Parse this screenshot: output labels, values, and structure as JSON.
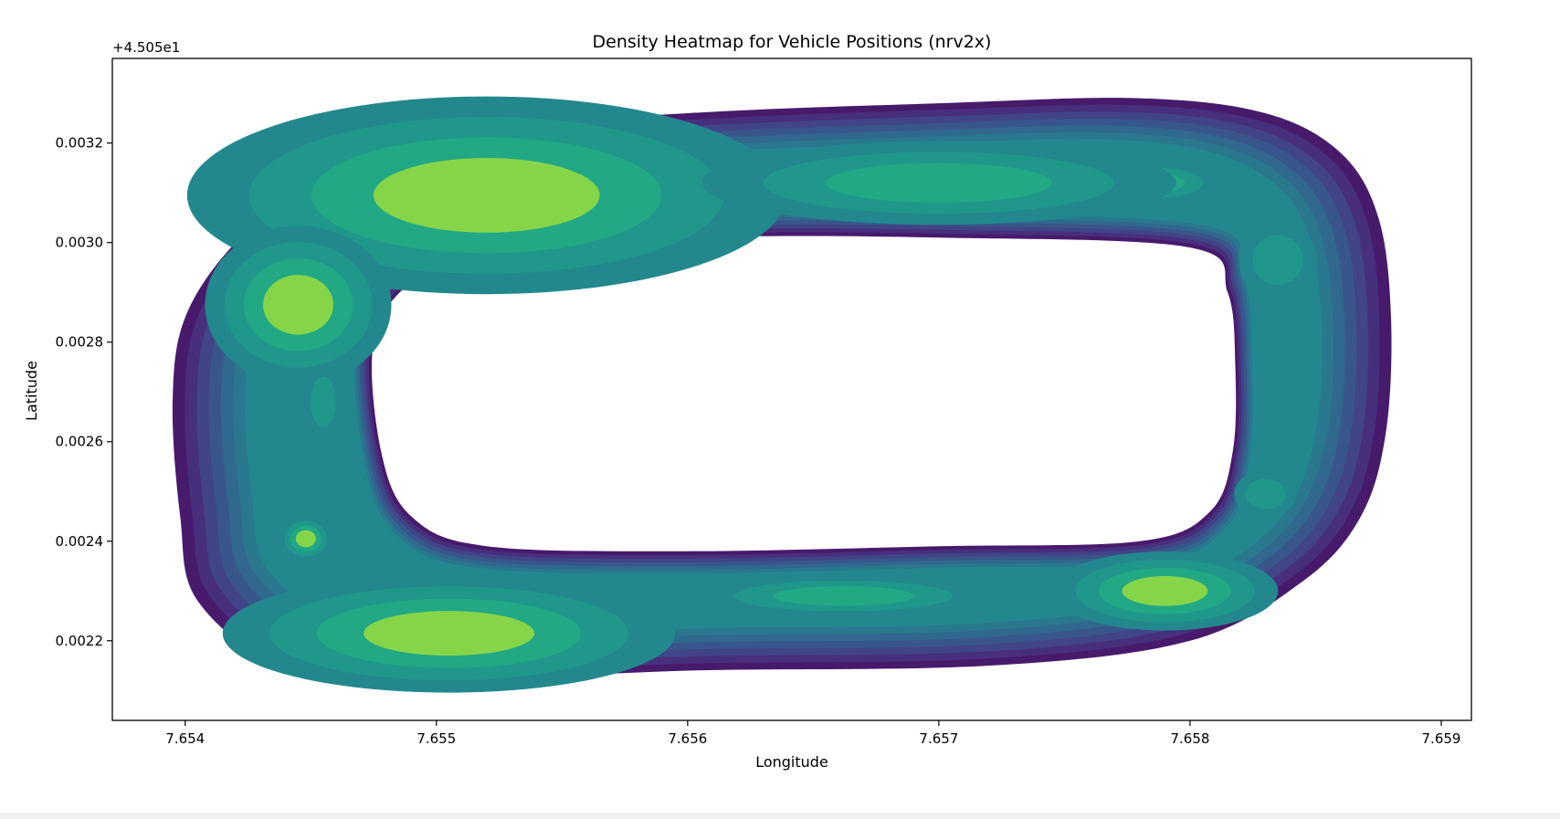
{
  "chart_data": {
    "type": "heatmap",
    "subtype": "kde-density-contour",
    "title": "Density Heatmap for Vehicle Positions (nrv2x)",
    "xlabel": "Longitude",
    "ylabel": "Latitude",
    "y_offset_label": "+4.505e1",
    "xlim": [
      7.65371,
      7.65912
    ],
    "ylim": [
      0.00204,
      0.00337
    ],
    "x_ticks": [
      {
        "value": 7.654,
        "label": "7.654"
      },
      {
        "value": 7.655,
        "label": "7.655"
      },
      {
        "value": 7.656,
        "label": "7.656"
      },
      {
        "value": 7.657,
        "label": "7.657"
      },
      {
        "value": 7.658,
        "label": "7.658"
      },
      {
        "value": 7.659,
        "label": "7.659"
      }
    ],
    "y_ticks": [
      {
        "value": 0.0022,
        "label": "0.0022"
      },
      {
        "value": 0.0024,
        "label": "0.0024"
      },
      {
        "value": 0.0026,
        "label": "0.0026"
      },
      {
        "value": 0.0028,
        "label": "0.0028"
      },
      {
        "value": 0.003,
        "label": "0.0030"
      },
      {
        "value": 0.0032,
        "label": "0.0032"
      }
    ],
    "colormap": [
      "#481a6c",
      "#472f7d",
      "#414487",
      "#39568c",
      "#31688e",
      "#2a788e",
      "#23888e",
      "#1f988b",
      "#22a884",
      "#86d549"
    ],
    "grid": false,
    "legend": "none",
    "track": {
      "outer": [
        [
          7.654,
          0.00285
        ],
        [
          7.6542,
          0.003
        ],
        [
          7.6545,
          0.00312
        ],
        [
          7.655,
          0.00322
        ],
        [
          7.656,
          0.00326
        ],
        [
          7.657,
          0.00328
        ],
        [
          7.6578,
          0.00329
        ],
        [
          7.6583,
          0.00326
        ],
        [
          7.6586,
          0.00318
        ],
        [
          7.65875,
          0.00305
        ],
        [
          7.6588,
          0.00285
        ],
        [
          7.65878,
          0.00262
        ],
        [
          7.65868,
          0.00245
        ],
        [
          7.65845,
          0.00232
        ],
        [
          7.658,
          0.0022
        ],
        [
          7.6572,
          0.00215
        ],
        [
          7.656,
          0.00214
        ],
        [
          7.655,
          0.00212
        ],
        [
          7.6544,
          0.00215
        ],
        [
          7.65405,
          0.00228
        ],
        [
          7.65398,
          0.00245
        ],
        [
          7.65395,
          0.00268
        ]
      ],
      "inner": [
        [
          7.65475,
          0.0028
        ],
        [
          7.6549,
          0.00292
        ],
        [
          7.6552,
          0.00298
        ],
        [
          7.656,
          0.00301
        ],
        [
          7.657,
          0.00301
        ],
        [
          7.658,
          0.00299
        ],
        [
          7.65815,
          0.0029
        ],
        [
          7.65818,
          0.00275
        ],
        [
          7.65817,
          0.00258
        ],
        [
          7.65808,
          0.00246
        ],
        [
          7.6578,
          0.0024
        ],
        [
          7.657,
          0.00239
        ],
        [
          7.656,
          0.00238
        ],
        [
          7.6552,
          0.00239
        ],
        [
          7.6549,
          0.00245
        ],
        [
          7.65478,
          0.00258
        ]
      ]
    },
    "hotspots": [
      {
        "x": 7.6552,
        "y": 0.003095,
        "rx": 0.00045,
        "ry": 7.5e-05,
        "level": 10
      },
      {
        "x": 7.65445,
        "y": 0.002875,
        "rx": 0.00014,
        "ry": 6e-05,
        "level": 10
      },
      {
        "x": 7.65448,
        "y": 0.002405,
        "rx": 4e-05,
        "ry": 1.7e-05,
        "level": 10
      },
      {
        "x": 7.65505,
        "y": 0.002215,
        "rx": 0.00034,
        "ry": 4.5e-05,
        "level": 10
      },
      {
        "x": 7.6579,
        "y": 0.0023,
        "rx": 0.00017,
        "ry": 3e-05,
        "level": 10
      },
      {
        "x": 7.65785,
        "y": 0.00312,
        "rx": 0.00013,
        "ry": 2e-05,
        "level": 9
      },
      {
        "x": 7.6583,
        "y": 0.002495,
        "rx": 8e-05,
        "ry": 3e-05,
        "level": 8
      },
      {
        "x": 7.65835,
        "y": 0.002965,
        "rx": 0.0001,
        "ry": 5e-05,
        "level": 7
      },
      {
        "x": 7.65455,
        "y": 0.00268,
        "rx": 5e-05,
        "ry": 5e-05,
        "level": 7
      },
      {
        "x": 7.65662,
        "y": 0.00229,
        "rx": 0.00028,
        "ry": 2e-05,
        "level": 9
      },
      {
        "x": 7.657,
        "y": 0.00312,
        "rx": 0.00045,
        "ry": 4e-05,
        "level": 9
      }
    ]
  }
}
